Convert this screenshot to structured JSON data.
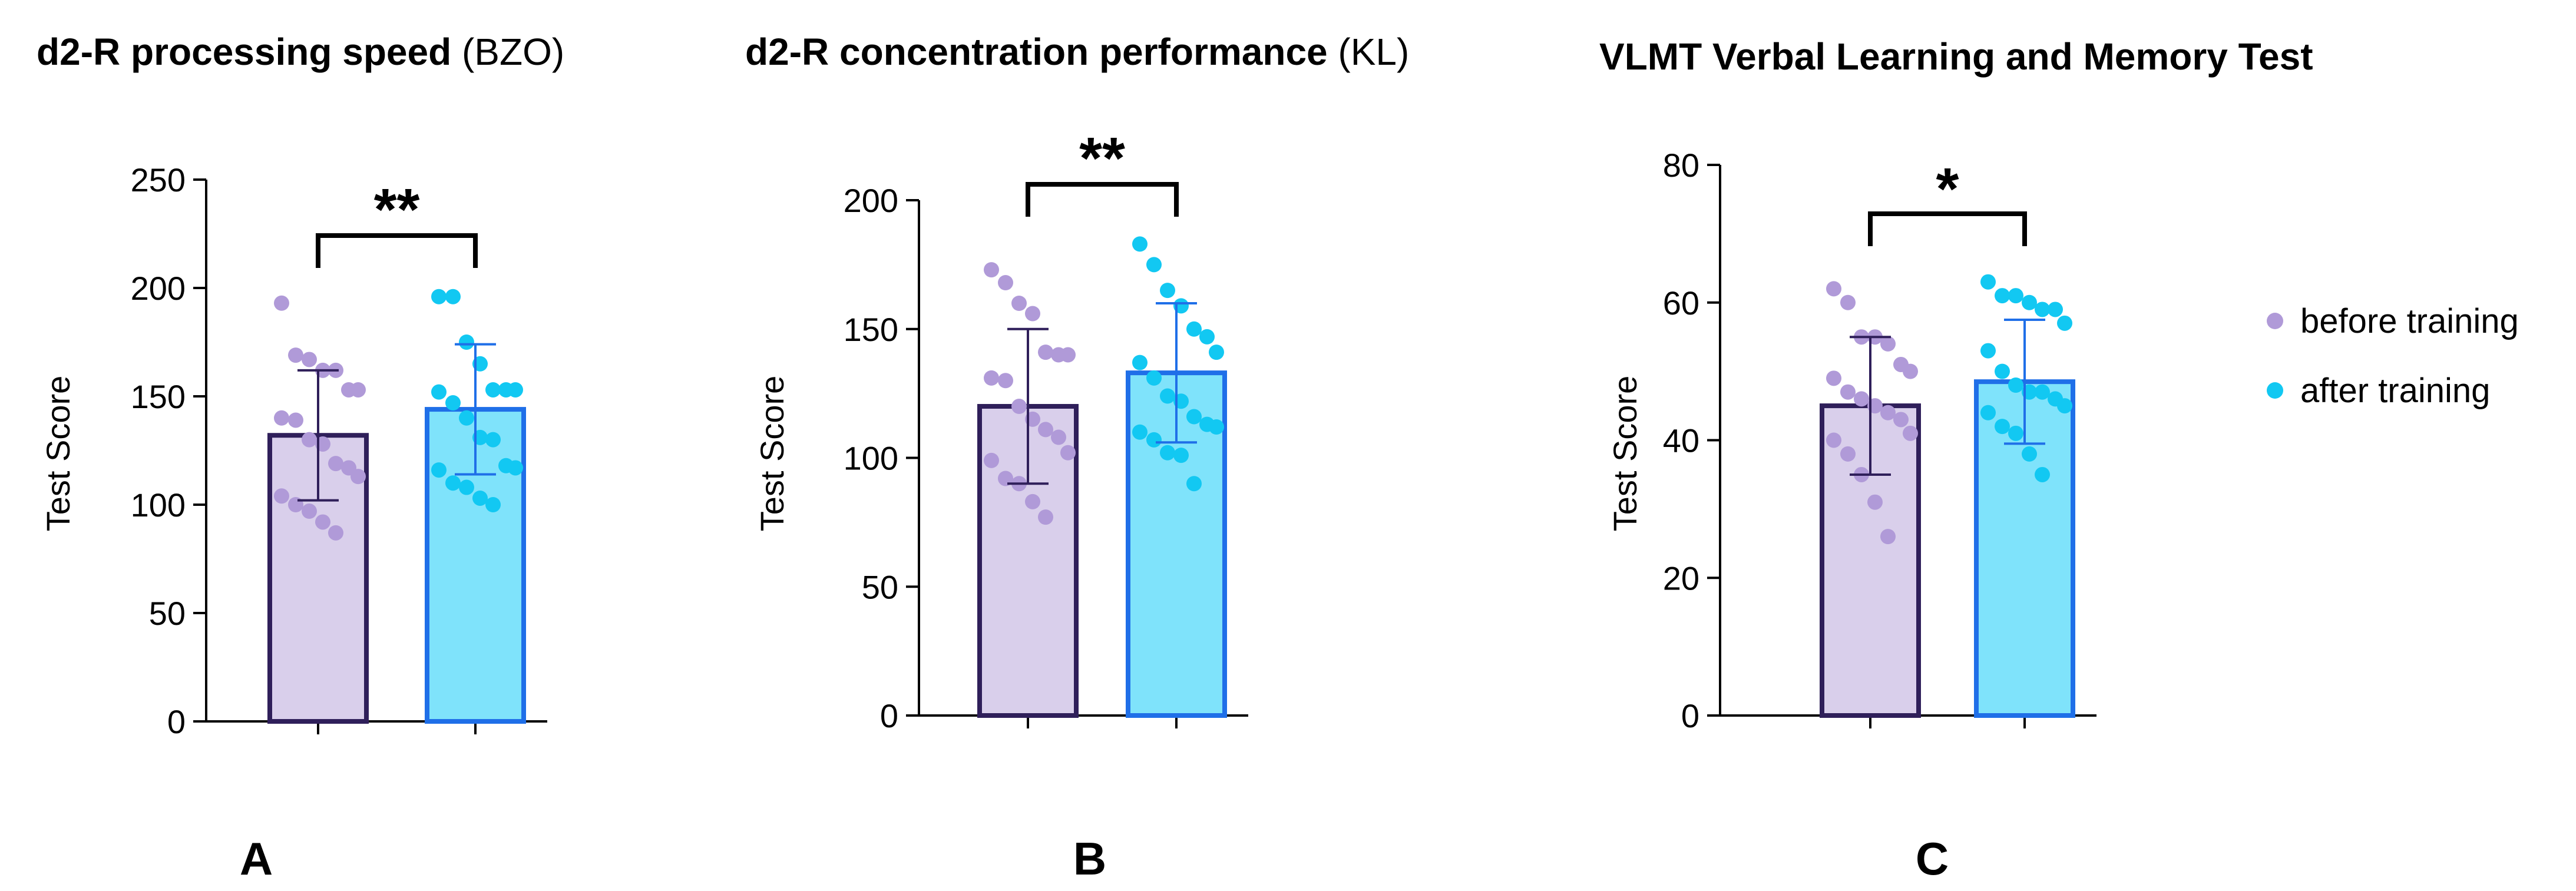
{
  "chart_data": [
    {
      "type": "bar",
      "panel": "A",
      "title_bold": "d2-R processing speed",
      "title_normal": " (BZO)",
      "ylabel": "Test Score",
      "xlabel": "",
      "ylim": [
        0,
        250
      ],
      "yticks": [
        0,
        50,
        100,
        150,
        200,
        250
      ],
      "categories": [
        "before training",
        "after training"
      ],
      "values": [
        132,
        144
      ],
      "error_sd": [
        30,
        30
      ],
      "significance": "**",
      "points": [
        [
          193,
          169,
          167,
          162,
          162,
          153,
          153,
          140,
          139,
          130,
          128,
          119,
          117,
          113,
          104,
          100,
          97,
          92,
          87
        ],
        [
          196,
          196,
          175,
          165,
          153,
          153,
          153,
          152,
          147,
          140,
          131,
          130,
          118,
          117,
          116,
          110,
          108,
          103,
          100
        ]
      ]
    },
    {
      "type": "bar",
      "panel": "B",
      "title_bold": "d2-R concentration performance",
      "title_normal": " (KL)",
      "ylabel": "Test Score",
      "xlabel": "",
      "ylim": [
        0,
        200
      ],
      "yticks": [
        0,
        50,
        100,
        150,
        200
      ],
      "categories": [
        "before training",
        "after training"
      ],
      "values": [
        120,
        133
      ],
      "error_sd": [
        30,
        27
      ],
      "significance": "**",
      "points": [
        [
          173,
          168,
          160,
          156,
          141,
          140,
          140,
          131,
          130,
          120,
          115,
          111,
          108,
          102,
          99,
          92,
          90,
          83,
          77
        ],
        [
          183,
          175,
          165,
          159,
          150,
          147,
          141,
          137,
          131,
          124,
          122,
          116,
          113,
          112,
          110,
          107,
          102,
          101,
          90
        ]
      ]
    },
    {
      "type": "bar",
      "panel": "C",
      "title_bold": "VLMT Verbal Learning and Memory Test",
      "title_normal": "",
      "ylabel": "Test Score",
      "xlabel": "",
      "ylim": [
        0,
        80
      ],
      "yticks": [
        0,
        20,
        40,
        60,
        80
      ],
      "categories": [
        "before training",
        "after training"
      ],
      "values": [
        45,
        48.5
      ],
      "error_sd": [
        10,
        9
      ],
      "significance": "*",
      "points": [
        [
          62,
          60,
          55,
          55,
          54,
          51,
          50,
          49,
          47,
          46,
          45,
          44,
          43,
          41,
          40,
          38,
          35,
          31,
          26
        ],
        [
          63,
          61,
          61,
          60,
          59,
          59,
          57,
          53,
          50,
          48,
          47,
          47,
          46,
          45,
          44,
          42,
          41,
          38,
          35
        ]
      ]
    }
  ],
  "legend": {
    "before_label": "before training",
    "after_label": "after training",
    "placement": "right"
  },
  "colors": {
    "before_fill": "#d9cfeb",
    "before_edge": "#2f1f5a",
    "before_dot": "#b09ad8",
    "after_fill": "#7fe3fb",
    "after_edge": "#1f6fe8",
    "after_dot": "#12c8f2"
  }
}
